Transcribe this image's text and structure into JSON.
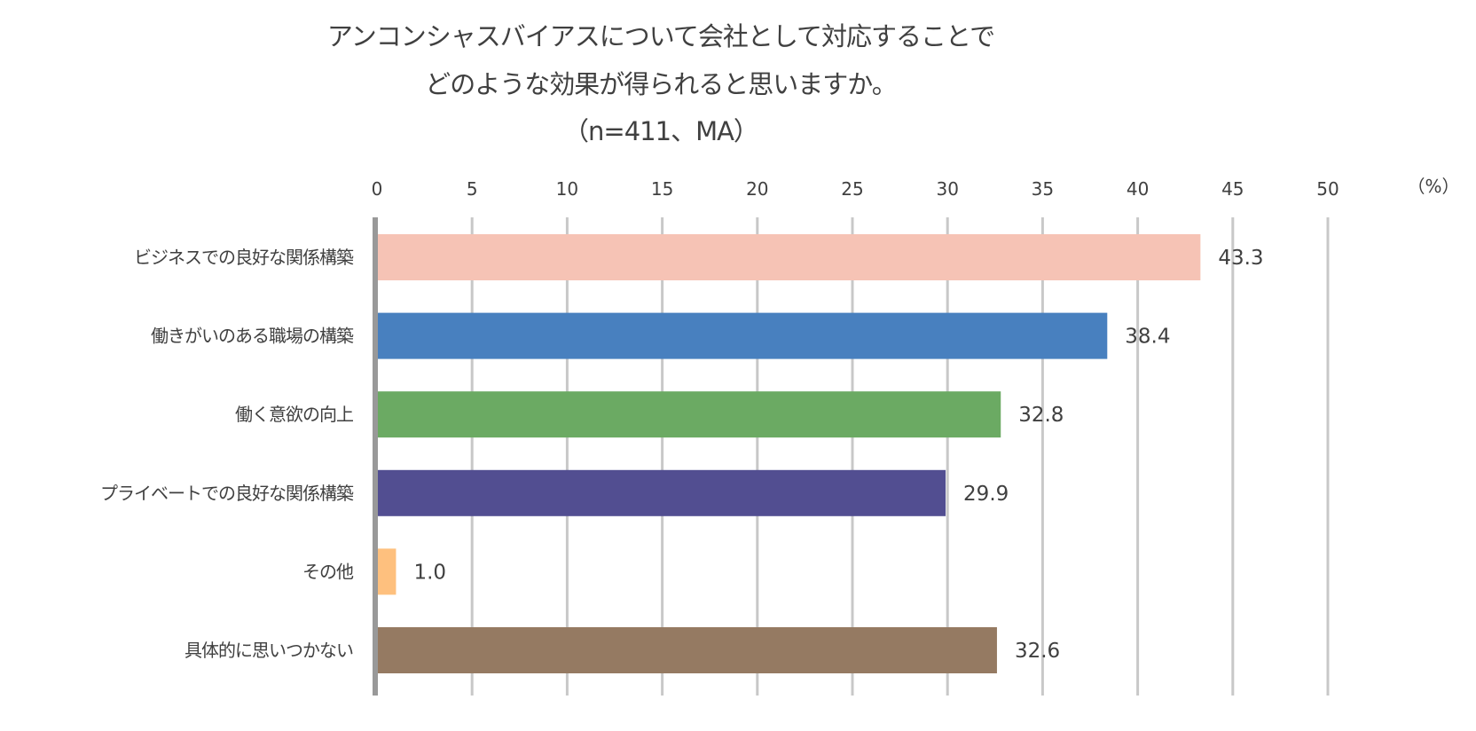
{
  "chart_data": {
    "type": "bar",
    "orientation": "horizontal",
    "title_lines": [
      "アンコンシャスバイアスについて会社として対応することで",
      "どのような効果が得られると思いますか。",
      "（n=411、MA）"
    ],
    "unit_label": "（%）",
    "xlim": [
      0,
      50
    ],
    "xticks": [
      0,
      5,
      10,
      15,
      20,
      25,
      30,
      35,
      40,
      45,
      50
    ],
    "grid": true,
    "categories": [
      "ビジネスでの良好な関係構築",
      "働きがいのある職場の構築",
      "働く意欲の向上",
      "プライベートでの良好な関係構築",
      "その他",
      "具体的に思いつかない"
    ],
    "values": [
      43.3,
      38.4,
      32.8,
      29.9,
      1.0,
      32.6
    ],
    "value_labels": [
      "43.3",
      "38.4",
      "32.8",
      "29.9",
      "1.0",
      "32.6"
    ],
    "colors": [
      "#F6C3B5",
      "#4880BF",
      "#6BAA63",
      "#524E91",
      "#FEC07E",
      "#957A62"
    ]
  }
}
